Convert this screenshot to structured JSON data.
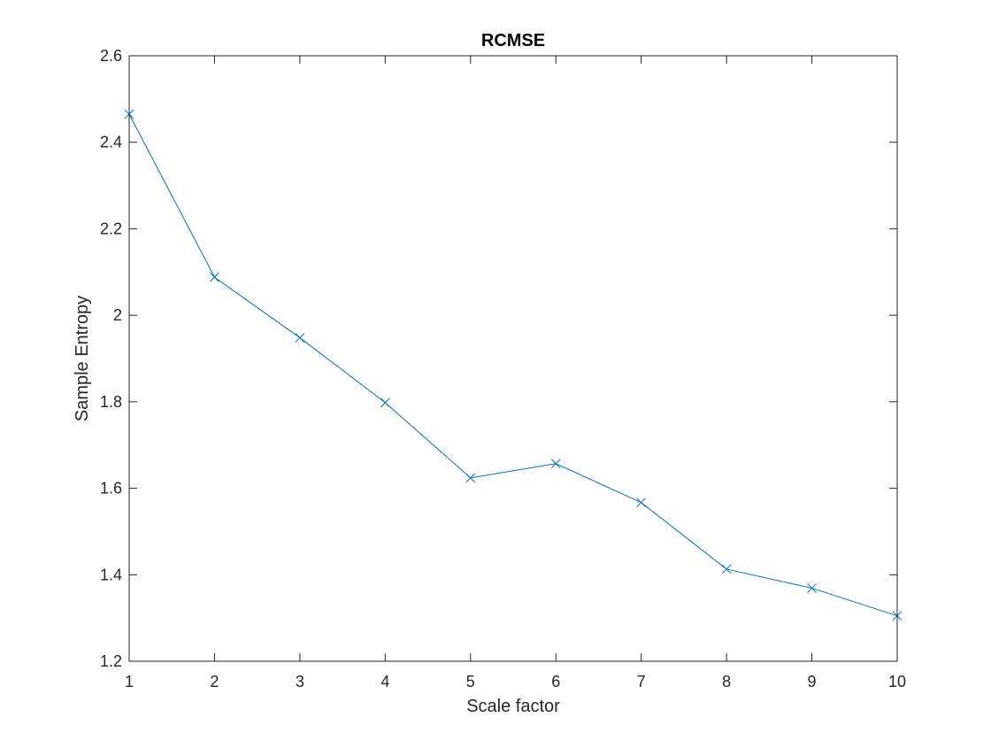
{
  "chart_data": {
    "type": "line",
    "title": "RCMSE",
    "xlabel": "Scale factor",
    "ylabel": "Sample Entropy",
    "xlim": [
      1,
      10
    ],
    "ylim": [
      1.2,
      2.6
    ],
    "xticks": [
      "1",
      "2",
      "3",
      "4",
      "5",
      "6",
      "7",
      "8",
      "9",
      "10"
    ],
    "yticks": [
      "1.2",
      "1.4",
      "1.6",
      "1.8",
      "2",
      "2.2",
      "2.4",
      "2.6"
    ],
    "grid": false,
    "marker": "x",
    "series": [
      {
        "x": [
          1,
          2,
          3,
          4,
          5,
          6,
          7,
          8,
          9,
          10
        ],
        "values": [
          2.465,
          2.088,
          1.948,
          1.798,
          1.624,
          1.657,
          1.567,
          1.413,
          1.369,
          1.305
        ],
        "color": "#0072BD"
      }
    ]
  }
}
